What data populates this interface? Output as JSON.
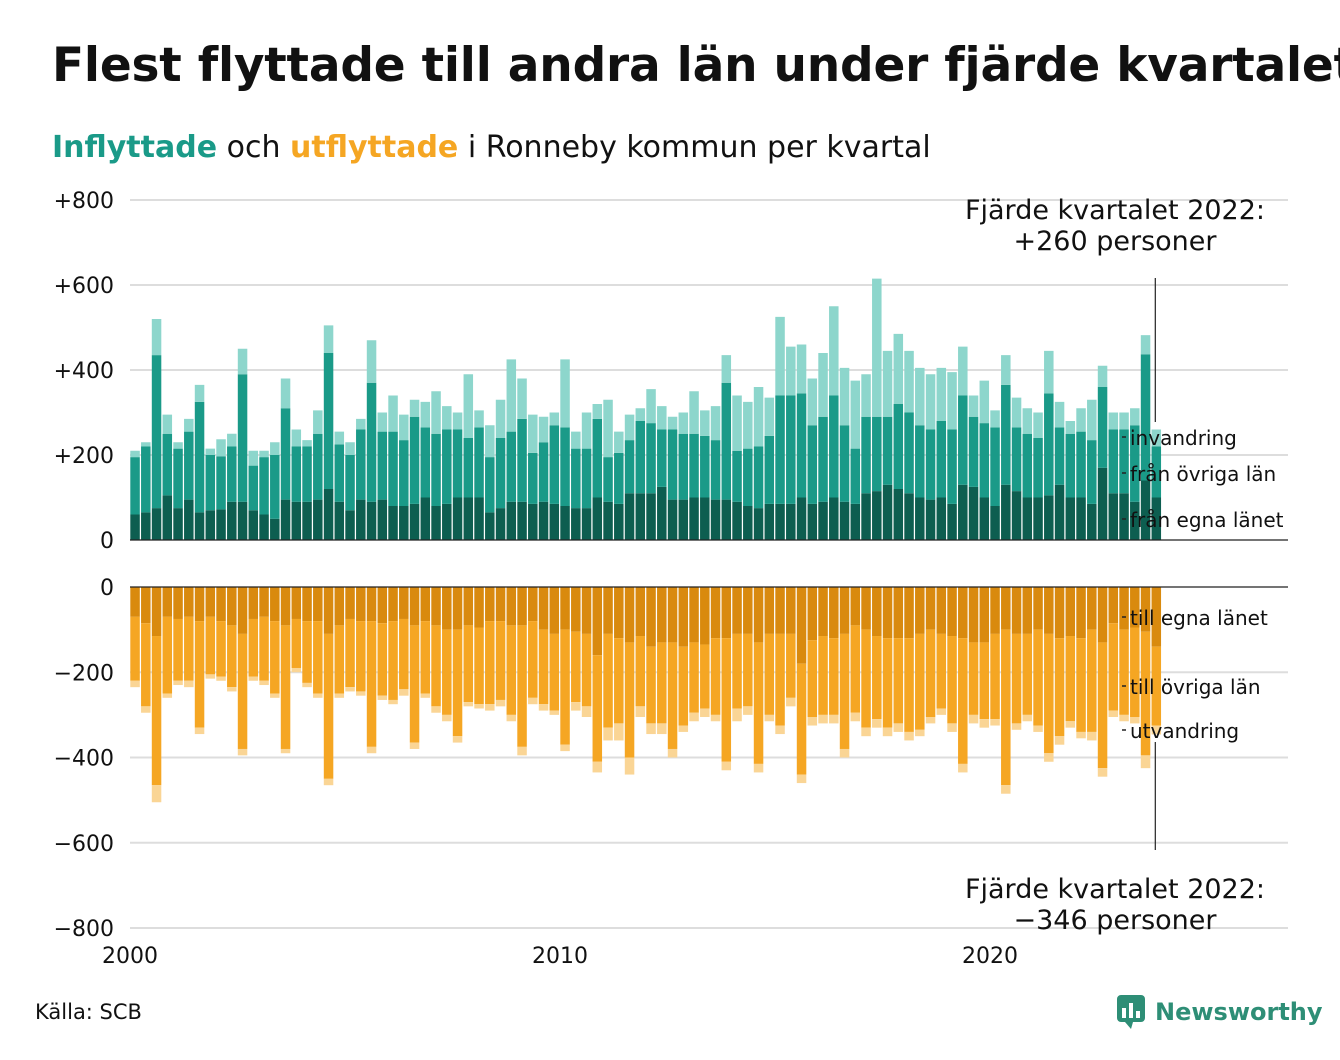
{
  "title": "Flest flyttade till andra län under fjärde kvartalet",
  "subtitle": {
    "inflow_word": "Inflyttade",
    "connector": "och",
    "outflow_word": "utflyttade",
    "rest": "i Ronneby kommun per kvartal"
  },
  "source": "Källa: SCB",
  "brand": "Newsworthy",
  "colors": {
    "in_egna": "#0d5e50",
    "in_ovriga": "#1a9a88",
    "in_invandring": "#8dd6cc",
    "out_egna": "#d98a0e",
    "out_ovriga": "#f5a623",
    "out_utvandring": "#fad595",
    "brand": "#2e8e76"
  },
  "chart_data": {
    "type": "bar",
    "stacked": true,
    "x_start": "2000 Q1",
    "x_end": "2022 Q4",
    "x_ticks": [
      "2000",
      "2010",
      "2020"
    ],
    "y_ticks_top": [
      "+800",
      "+600",
      "+400",
      "+200",
      "0"
    ],
    "y_ticks_bottom": [
      "0",
      "−200",
      "−400",
      "−600",
      "−800"
    ],
    "ylim_top": [
      0,
      800
    ],
    "ylim_bottom": [
      -800,
      0
    ],
    "grid": true,
    "annotations": {
      "top_line1": "Fjärde kvartalet 2022:",
      "top_line2": "+260 personer",
      "bottom_line1": "Fjärde kvartalet 2022:",
      "bottom_line2": "−346 personer"
    },
    "inflow_series": [
      {
        "name": "från egna länet",
        "values": [
          60,
          65,
          75,
          105,
          75,
          95,
          65,
          70,
          72,
          90,
          90,
          70,
          60,
          50,
          95,
          90,
          90,
          95,
          120,
          90,
          70,
          95,
          90,
          95,
          80,
          80,
          85,
          100,
          80,
          85,
          100,
          100,
          100,
          65,
          75,
          90,
          90,
          85,
          90,
          85,
          80,
          75,
          75,
          100,
          90,
          85,
          110,
          110,
          110,
          125,
          95,
          95,
          100,
          100,
          95,
          95,
          90,
          80,
          75,
          85,
          85,
          85,
          100,
          85,
          90,
          100,
          90,
          85,
          110,
          115,
          130,
          120,
          110,
          100,
          95,
          100,
          85,
          130,
          125,
          100,
          80,
          130,
          115,
          100,
          100,
          105,
          130,
          100,
          100,
          85,
          170,
          110,
          110,
          90,
          140,
          100
        ]
      },
      {
        "name": "från övriga län",
        "values": [
          135,
          155,
          360,
          145,
          140,
          160,
          260,
          130,
          125,
          130,
          300,
          105,
          135,
          150,
          215,
          130,
          130,
          155,
          320,
          135,
          130,
          165,
          280,
          160,
          175,
          155,
          205,
          165,
          170,
          175,
          160,
          140,
          165,
          130,
          165,
          165,
          195,
          120,
          140,
          185,
          185,
          140,
          140,
          185,
          105,
          120,
          125,
          170,
          165,
          135,
          165,
          155,
          150,
          145,
          140,
          275,
          120,
          135,
          145,
          160,
          255,
          255,
          245,
          185,
          200,
          240,
          180,
          130,
          180,
          175,
          160,
          200,
          190,
          170,
          165,
          180,
          175,
          210,
          165,
          175,
          185,
          235,
          150,
          150,
          140,
          240,
          135,
          150,
          155,
          150,
          190,
          150,
          150,
          180,
          297,
          120
        ]
      },
      {
        "name": "invandring",
        "values": [
          15,
          10,
          85,
          45,
          15,
          30,
          40,
          15,
          40,
          30,
          60,
          35,
          15,
          30,
          70,
          40,
          15,
          55,
          65,
          30,
          30,
          25,
          100,
          45,
          85,
          60,
          40,
          60,
          100,
          55,
          40,
          150,
          40,
          75,
          90,
          170,
          95,
          90,
          60,
          30,
          160,
          40,
          85,
          35,
          135,
          50,
          60,
          30,
          80,
          55,
          30,
          50,
          100,
          60,
          80,
          65,
          130,
          110,
          140,
          90,
          185,
          115,
          115,
          110,
          150,
          210,
          135,
          160,
          100,
          325,
          155,
          165,
          145,
          135,
          130,
          125,
          135,
          115,
          50,
          100,
          40,
          70,
          70,
          60,
          60,
          100,
          60,
          30,
          55,
          95,
          50,
          40,
          40,
          40,
          45,
          40
        ]
      }
    ],
    "outflow_series": [
      {
        "name": "till egna länet",
        "values": [
          -70,
          -85,
          -115,
          -70,
          -75,
          -70,
          -80,
          -70,
          -80,
          -90,
          -110,
          -75,
          -70,
          -80,
          -90,
          -75,
          -80,
          -80,
          -110,
          -90,
          -75,
          -80,
          -80,
          -85,
          -80,
          -75,
          -90,
          -80,
          -90,
          -100,
          -100,
          -90,
          -95,
          -80,
          -80,
          -90,
          -90,
          -80,
          -100,
          -110,
          -100,
          -105,
          -110,
          -160,
          -110,
          -120,
          -130,
          -115,
          -140,
          -130,
          -130,
          -140,
          -130,
          -135,
          -120,
          -120,
          -110,
          -110,
          -130,
          -110,
          -110,
          -110,
          -180,
          -125,
          -115,
          -120,
          -110,
          -90,
          -100,
          -115,
          -120,
          -120,
          -120,
          -110,
          -100,
          -110,
          -115,
          -120,
          -130,
          -130,
          -110,
          -100,
          -110,
          -110,
          -100,
          -110,
          -120,
          -115,
          -120,
          -100,
          -130,
          -85,
          -100,
          -95,
          -105,
          -140
        ]
      },
      {
        "name": "till övriga län",
        "values": [
          -150,
          -195,
          -350,
          -180,
          -145,
          -150,
          -250,
          -135,
          -130,
          -145,
          -270,
          -135,
          -150,
          -170,
          -290,
          -115,
          -145,
          -170,
          -340,
          -160,
          -160,
          -165,
          -295,
          -170,
          -185,
          -165,
          -275,
          -170,
          -190,
          -200,
          -250,
          -180,
          -180,
          -195,
          -185,
          -210,
          -285,
          -180,
          -175,
          -180,
          -270,
          -165,
          -170,
          -250,
          -220,
          -200,
          -270,
          -165,
          -180,
          -190,
          -250,
          -185,
          -165,
          -150,
          -180,
          -290,
          -175,
          -170,
          -285,
          -190,
          -215,
          -150,
          -260,
          -180,
          -185,
          -180,
          -270,
          -205,
          -230,
          -195,
          -210,
          -200,
          -220,
          -225,
          -205,
          -175,
          -205,
          -295,
          -170,
          -180,
          -200,
          -365,
          -210,
          -190,
          -225,
          -280,
          -230,
          -200,
          -220,
          -240,
          -295,
          -205,
          -200,
          -210,
          -290,
          -185
        ]
      },
      {
        "name": "utvandring",
        "values": [
          -15,
          -15,
          -40,
          -10,
          -10,
          -15,
          -15,
          -10,
          -10,
          -10,
          -15,
          -10,
          -10,
          -10,
          -10,
          -10,
          -10,
          -10,
          -15,
          -10,
          -10,
          -10,
          -15,
          -10,
          -10,
          -15,
          -15,
          -10,
          -15,
          -15,
          -15,
          -10,
          -10,
          -15,
          -15,
          -15,
          -20,
          -15,
          -15,
          -10,
          -15,
          -20,
          -25,
          -25,
          -30,
          -40,
          -40,
          -25,
          -25,
          -25,
          -20,
          -15,
          -20,
          -20,
          -15,
          -20,
          -30,
          -20,
          -20,
          -15,
          -20,
          -20,
          -20,
          -20,
          -20,
          -20,
          -20,
          -20,
          -20,
          -20,
          -20,
          -20,
          -20,
          -15,
          -15,
          -15,
          -20,
          -20,
          -20,
          -20,
          -15,
          -20,
          -15,
          -15,
          -15,
          -20,
          -20,
          -15,
          -15,
          -20,
          -20,
          -15,
          -15,
          -15,
          -30,
          -21
        ]
      }
    ],
    "inflow_legend": [
      "invandring",
      "från övriga län",
      "från egna länet"
    ],
    "outflow_legend": [
      "till egna länet",
      "till övriga län",
      "utvandring"
    ]
  }
}
